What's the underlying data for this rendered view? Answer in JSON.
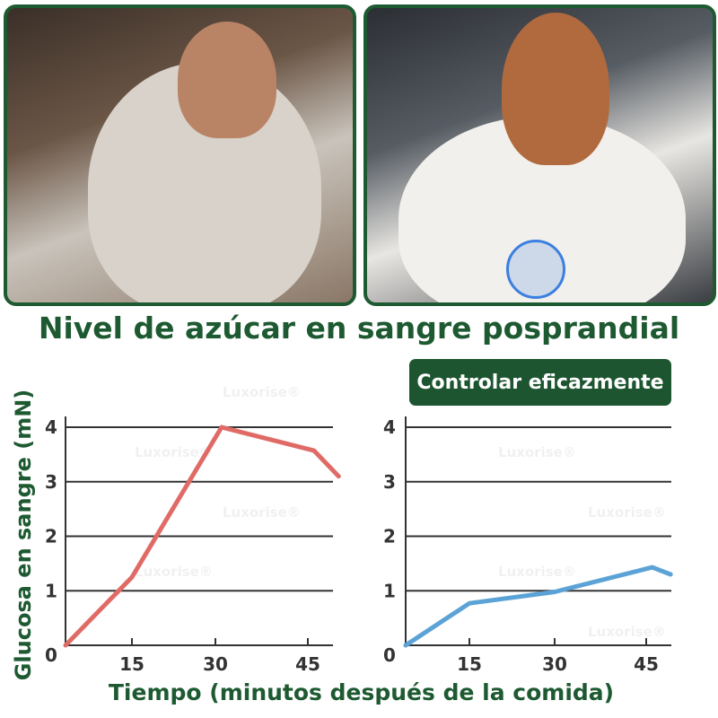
{
  "photos": {
    "left": "person-eating-dessert-photo",
    "right": "person-eating-with-smartwatch-photo"
  },
  "title": "Nivel de azúcar en sangre posprandial",
  "badge": "Controlar eficazmente",
  "watermark": "Luxorise®",
  "chart_data": [
    {
      "type": "line",
      "xlabel": "Tiempo (minutos después de la comida)",
      "ylabel": "Glucosa en sangre (mN)",
      "x_ticks": [
        15,
        30,
        45
      ],
      "y_ticks": [
        0,
        1,
        2,
        3,
        4
      ],
      "ylim": [
        0,
        4
      ],
      "grid": "horizontal",
      "color": "#e06b66",
      "points": [
        [
          0,
          0
        ],
        [
          15,
          1.25
        ],
        [
          31,
          4.0
        ],
        [
          46,
          3.57
        ],
        [
          50,
          3.1
        ]
      ]
    },
    {
      "type": "line",
      "xlabel": "Tiempo (minutos después de la comida)",
      "ylabel": "Glucosa en sangre (mN)",
      "x_ticks": [
        15,
        30,
        45
      ],
      "y_ticks": [
        0,
        1,
        2,
        3,
        4
      ],
      "ylim": [
        0,
        4
      ],
      "grid": "horizontal",
      "color": "#5ba3d6",
      "points": [
        [
          0,
          0
        ],
        [
          15,
          0.77
        ],
        [
          30,
          0.98
        ],
        [
          46,
          1.43
        ],
        [
          49,
          1.3
        ]
      ]
    }
  ]
}
